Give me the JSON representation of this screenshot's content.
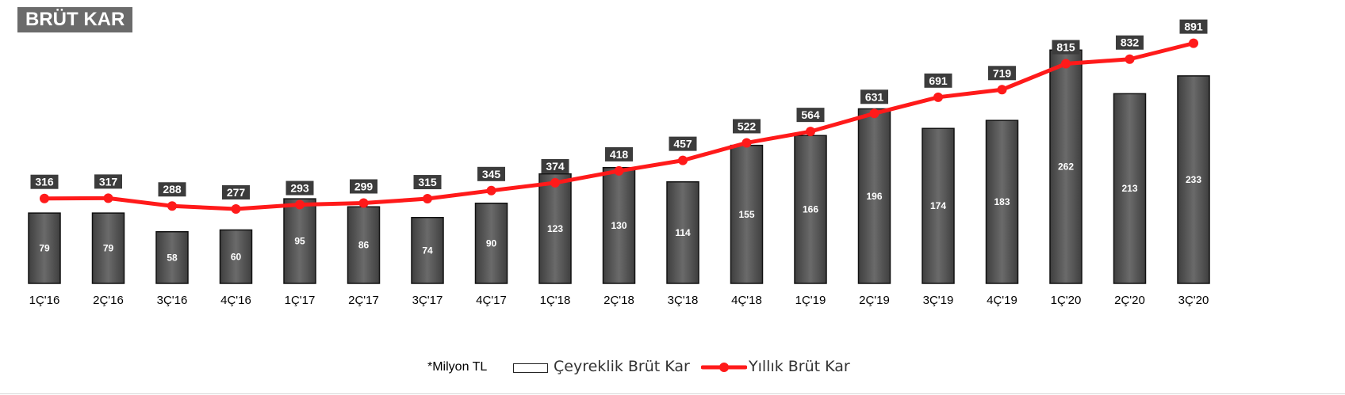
{
  "title": "BRÜT KAR",
  "legend": {
    "note": "*Milyon TL",
    "bar_label": "Çeyreklik Brüt Kar",
    "line_label": "Yıllık Brüt Kar"
  },
  "colors": {
    "bar": "#5a5a5a",
    "line": "#ff1a1a",
    "label_bg": "#3c3c3c",
    "title_bg": "#6b6b6b"
  },
  "chart_data": {
    "type": "bar",
    "categories": [
      "1Ç'16",
      "2Ç'16",
      "3Ç'16",
      "4Ç'16",
      "1Ç'17",
      "2Ç'17",
      "3Ç'17",
      "4Ç'17",
      "1Ç'18",
      "2Ç'18",
      "3Ç'18",
      "4Ç'18",
      "1Ç'19",
      "2Ç'19",
      "3Ç'19",
      "4Ç'19",
      "1Ç'20",
      "2Ç'20",
      "3Ç'20"
    ],
    "series": [
      {
        "name": "Çeyreklik Brüt Kar",
        "type": "bar",
        "values": [
          79,
          79,
          58,
          60,
          95,
          86,
          74,
          90,
          123,
          130,
          114,
          155,
          166,
          196,
          174,
          183,
          262,
          213,
          233
        ]
      },
      {
        "name": "Yıllık Brüt Kar",
        "type": "line",
        "values": [
          316,
          317,
          288,
          277,
          293,
          299,
          315,
          345,
          374,
          418,
          457,
          522,
          564,
          631,
          691,
          719,
          815,
          832,
          891
        ]
      }
    ],
    "grid": false,
    "legend_position": "bottom"
  }
}
